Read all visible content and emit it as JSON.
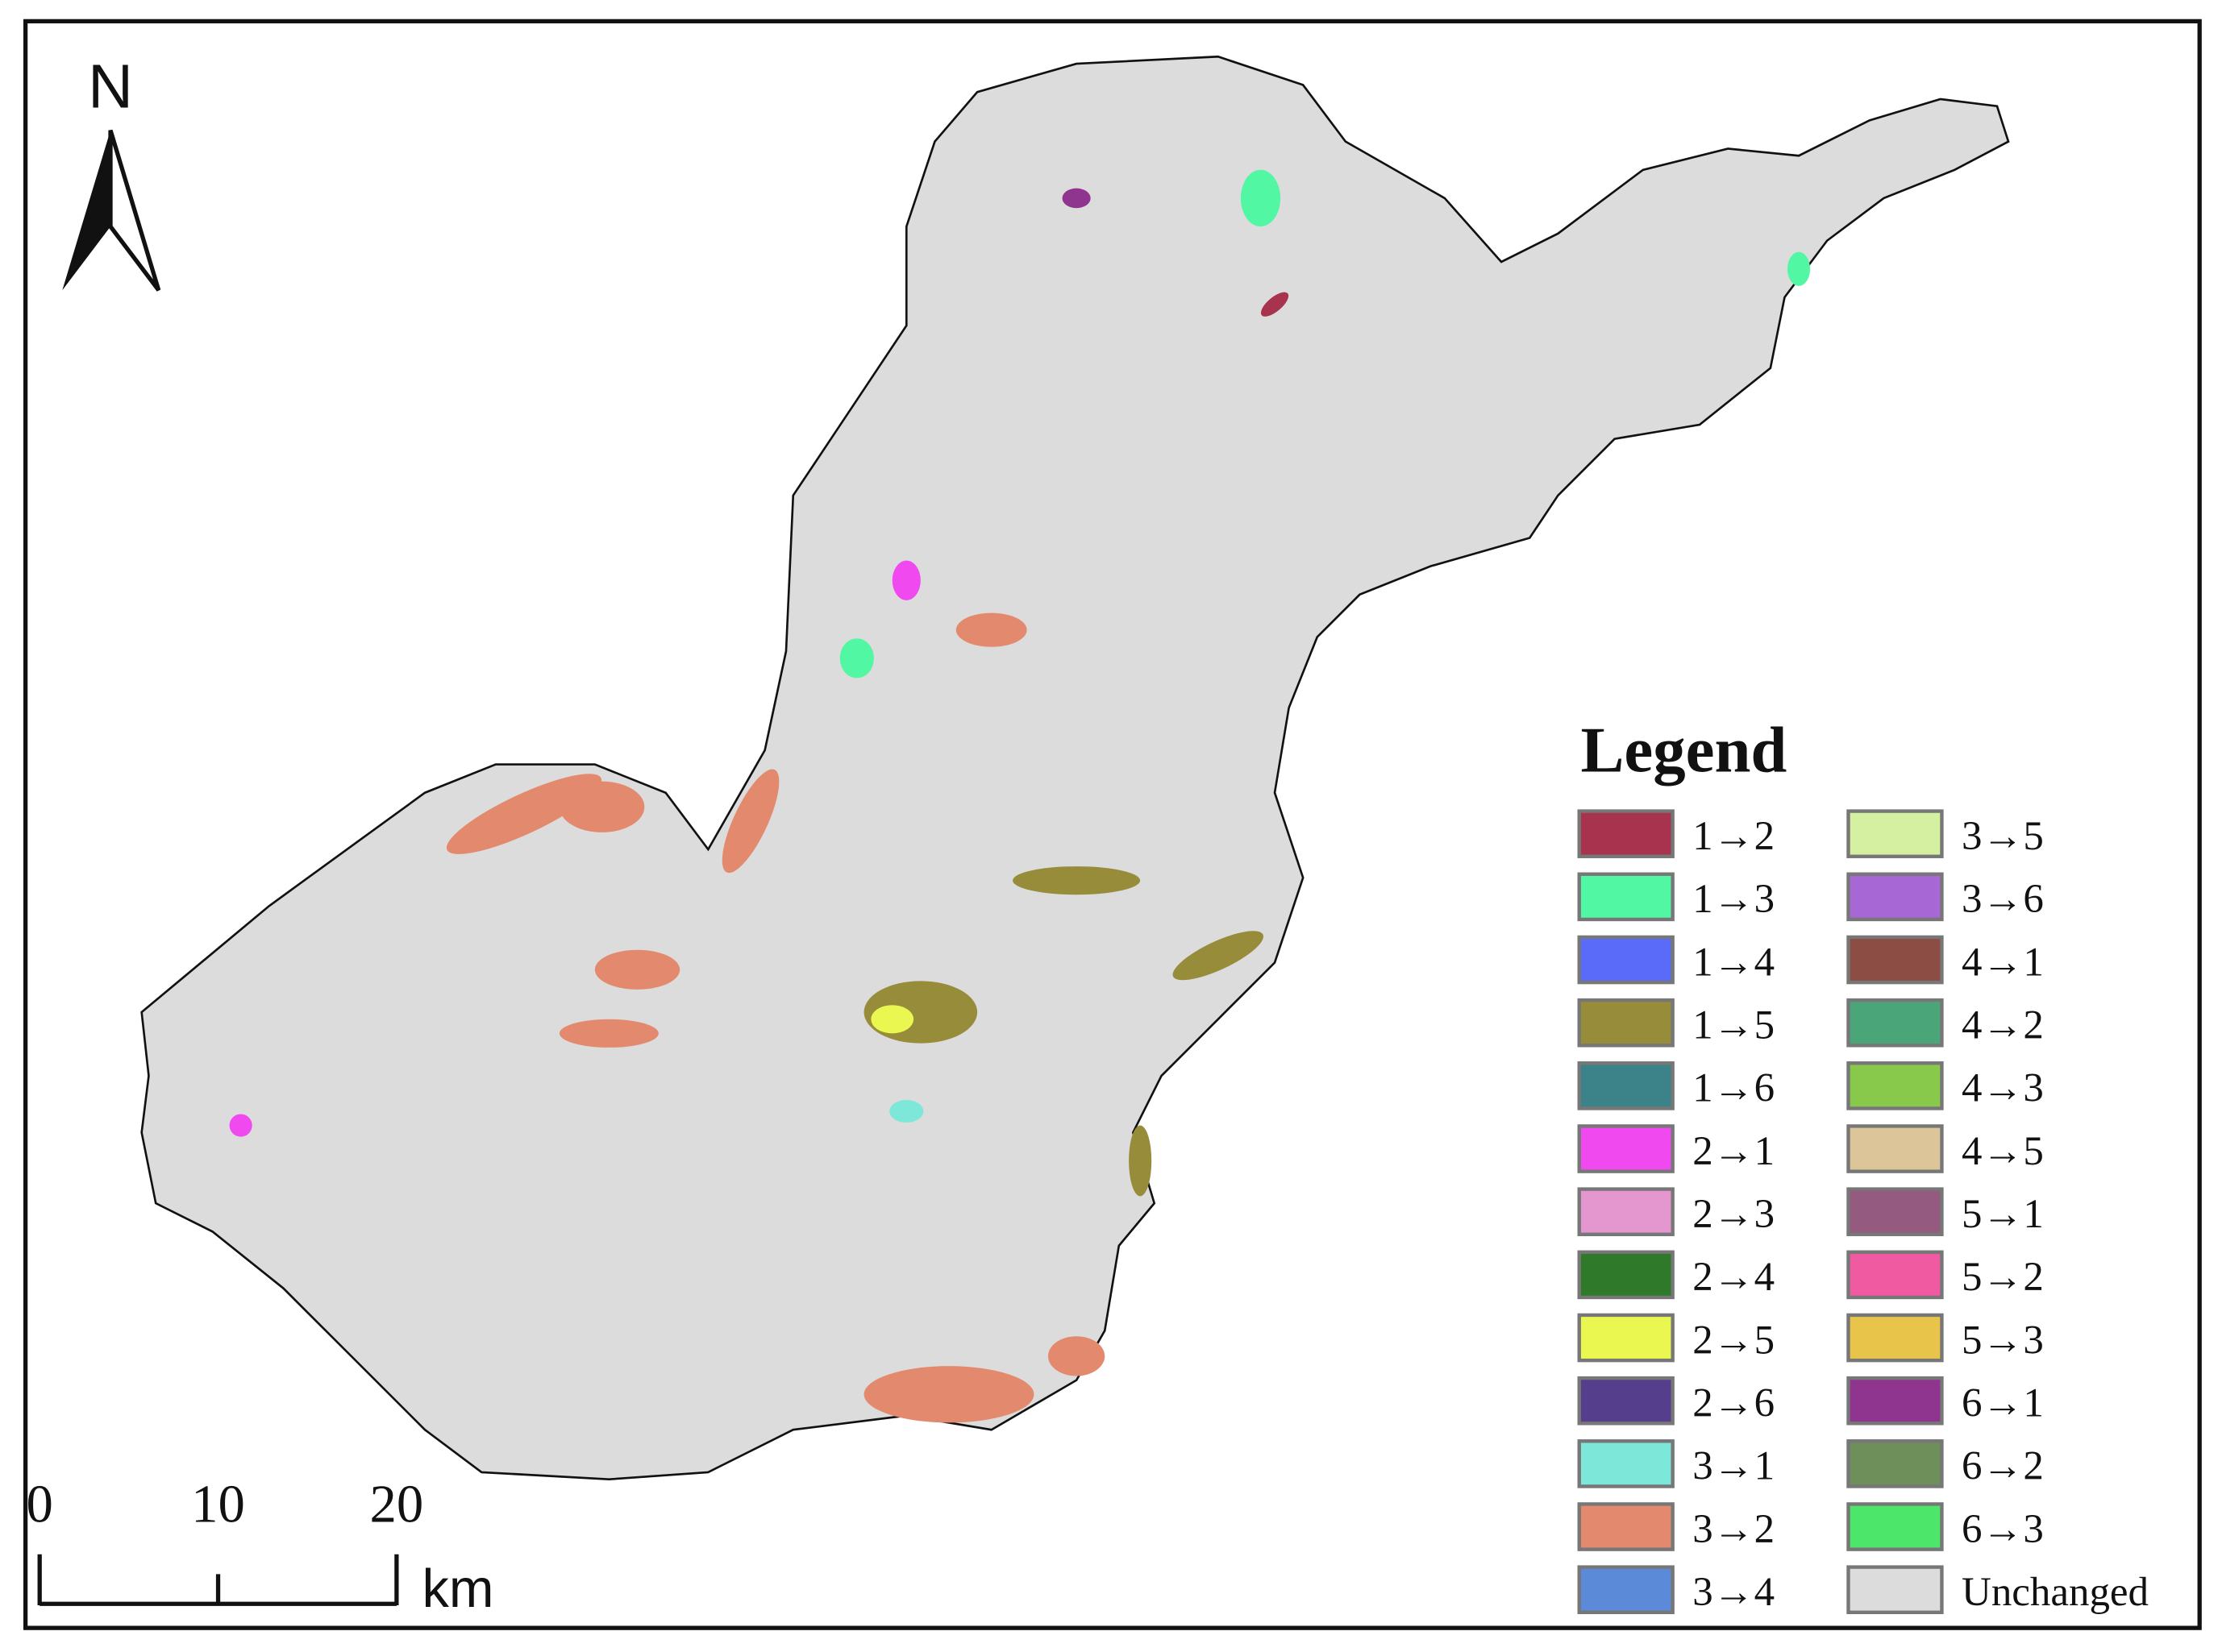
{
  "north_arrow": {
    "label": "N"
  },
  "scale_bar": {
    "ticks": [
      0,
      10,
      20
    ],
    "unit": "km"
  },
  "legend": {
    "title": "Legend",
    "items": [
      {
        "label": "1→2",
        "color": "#a8334e"
      },
      {
        "label": "1→3",
        "color": "#52f7a3"
      },
      {
        "label": "1→4",
        "color": "#5a6bfa"
      },
      {
        "label": "1→5",
        "color": "#968c3a"
      },
      {
        "label": "1→6",
        "color": "#3c8289"
      },
      {
        "label": "2→1",
        "color": "#f049f0"
      },
      {
        "label": "2→3",
        "color": "#e497cf"
      },
      {
        "label": "2→4",
        "color": "#2f7a2a"
      },
      {
        "label": "2→5",
        "color": "#eaf751"
      },
      {
        "label": "2→6",
        "color": "#553f8c"
      },
      {
        "label": "3→1",
        "color": "#7de8da"
      },
      {
        "label": "3→2",
        "color": "#e38a6e"
      },
      {
        "label": "3→4",
        "color": "#5b8ad8"
      },
      {
        "label": "3→5",
        "color": "#d4f0a0"
      },
      {
        "label": "3→6",
        "color": "#a768d6"
      },
      {
        "label": "4→1",
        "color": "#8c4e44"
      },
      {
        "label": "4→2",
        "color": "#4aa678"
      },
      {
        "label": "4→3",
        "color": "#88c84a"
      },
      {
        "label": "4→5",
        "color": "#dcc598"
      },
      {
        "label": "5→1",
        "color": "#955a80"
      },
      {
        "label": "5→2",
        "color": "#ef5aa0"
      },
      {
        "label": "5→3",
        "color": "#e8c44a"
      },
      {
        "label": "6→1",
        "color": "#8f3590"
      },
      {
        "label": "6→2",
        "color": "#6f8f5a"
      },
      {
        "label": "6→3",
        "color": "#4ce66a"
      },
      {
        "label": "Unchanged",
        "color": "#dcdcdc"
      }
    ]
  }
}
